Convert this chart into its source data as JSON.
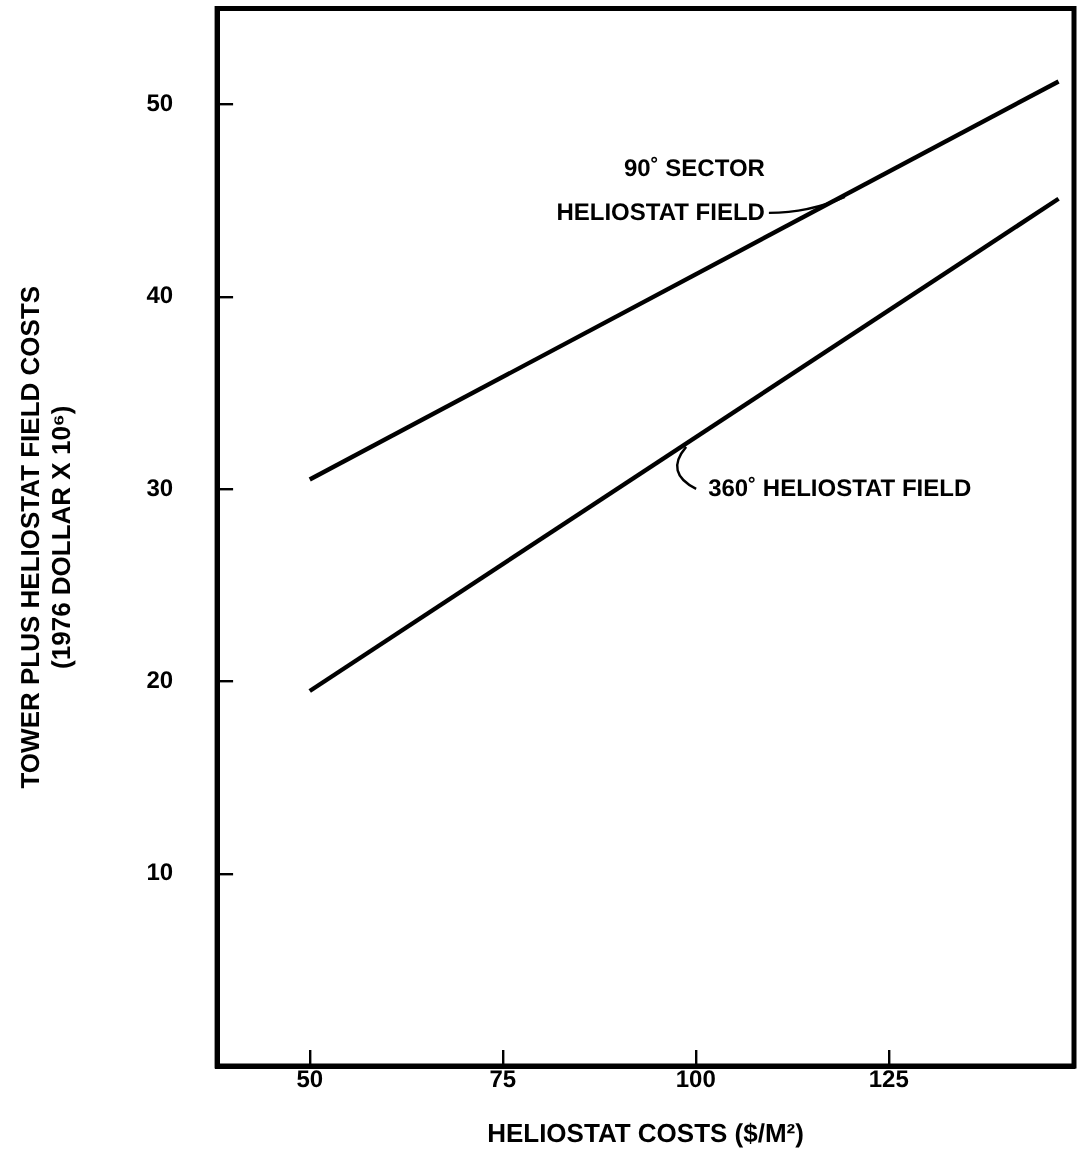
{
  "chart_data": {
    "type": "line",
    "xlabel": "HELIOSTAT COSTS ($/M²)",
    "ylabel": "TOWER PLUS HELIOSTAT FIELD COSTS\n(1976 DOLLAR X 10⁶)",
    "xlim": [
      38,
      149
    ],
    "xticks": [
      50,
      75,
      100,
      125
    ],
    "ylim": [
      0,
      55
    ],
    "yticks": [
      10,
      20,
      30,
      40,
      50
    ],
    "x": [
      50,
      147
    ],
    "grid": false,
    "marker": "none",
    "line_style": "solid",
    "series": [
      {
        "name": "90˚ SECTOR\nHELIOSTAT FIELD",
        "color": "#000000",
        "values": [
          30.5,
          51.2
        ]
      },
      {
        "name": "360˚ HELIOSTAT FIELD",
        "color": "#000000",
        "values": [
          19.5,
          45.1
        ]
      }
    ]
  }
}
